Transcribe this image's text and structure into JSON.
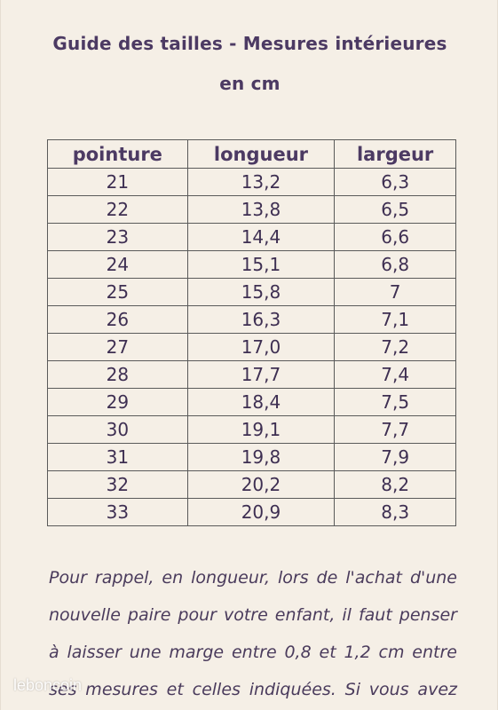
{
  "title": {
    "line1": "Guide des tailles - Mesures intérieures",
    "line2": "en cm"
  },
  "table": {
    "headers": [
      "pointure",
      "longueur",
      "largeur"
    ],
    "rows": [
      [
        "21",
        "13,2",
        "6,3"
      ],
      [
        "22",
        "13,8",
        "6,5"
      ],
      [
        "23",
        "14,4",
        "6,6"
      ],
      [
        "24",
        "15,1",
        "6,8"
      ],
      [
        "25",
        "15,8",
        "7"
      ],
      [
        "26",
        "16,3",
        "7,1"
      ],
      [
        "27",
        "17,0",
        "7,2"
      ],
      [
        "28",
        "17,7",
        "7,4"
      ],
      [
        "29",
        "18,4",
        "7,5"
      ],
      [
        "30",
        "19,1",
        "7,7"
      ],
      [
        "31",
        "19,8",
        "7,9"
      ],
      [
        "32",
        "20,2",
        "8,2"
      ],
      [
        "33",
        "20,9",
        "8,3"
      ]
    ]
  },
  "note_lines": [
    "Pour rappel, en longueur, lors de l'achat d'une",
    "nouvelle paire pour votre enfant, il faut penser",
    "à laisser une marge entre 0,8 et 1,2 cm entre",
    "ses mesures et celles indiquées. Si vous avez"
  ],
  "watermark": "leboncoin"
}
